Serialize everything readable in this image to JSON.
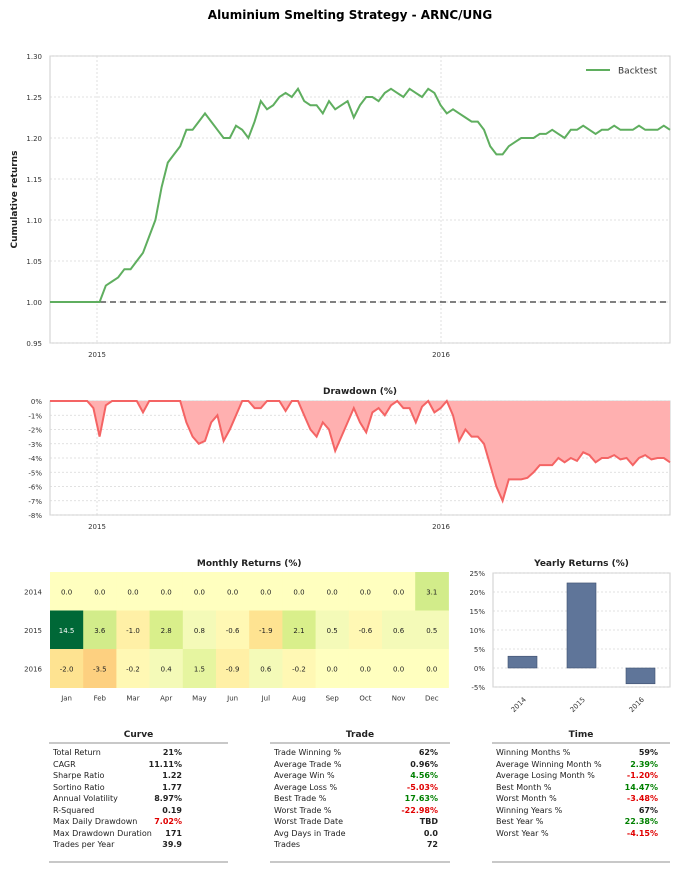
{
  "figure_title": "Aluminium Smelting Strategy - ARNC/UNG",
  "colors": {
    "green": "#5fae5f",
    "red": "#f46464",
    "redfill": "#ffb0b0",
    "bar": "#5f7599",
    "pos": "#008000",
    "neg": "#e00000"
  },
  "chart_data": [
    {
      "type": "line",
      "name": "cumulative_returns",
      "ylabel": "Cumulative returns",
      "ylim": [
        0.95,
        1.3
      ],
      "yticks": [
        "0.95",
        "1.00",
        "1.05",
        "1.10",
        "1.15",
        "1.20",
        "1.25",
        "1.30"
      ],
      "xticks": [
        "2015",
        "2016"
      ],
      "legend": "Backtest",
      "legend_position": "top-right",
      "baseline": 1.0,
      "series": [
        {
          "name": "Backtest",
          "x": [
            0,
            8,
            9,
            10,
            11,
            12,
            13,
            14,
            15,
            16,
            17,
            18,
            19,
            20,
            21,
            21.5,
            22,
            23,
            24,
            25,
            26,
            27,
            28,
            29,
            30,
            31,
            32,
            33,
            34,
            35,
            36,
            37,
            38,
            39,
            40,
            41,
            42,
            43,
            44,
            45,
            46,
            47,
            48,
            49,
            50,
            51,
            52,
            53,
            54,
            55,
            56,
            57,
            58,
            59,
            60,
            61,
            62,
            63,
            64,
            65,
            66,
            67,
            68,
            69,
            70,
            71,
            72,
            73,
            74,
            75,
            76,
            77,
            78,
            79,
            80,
            81,
            82,
            83,
            84,
            85,
            86,
            87,
            88,
            89,
            90,
            91,
            92,
            93,
            94,
            95,
            96,
            97,
            98,
            99,
            100
          ],
          "y": [
            1.0,
            1.0,
            1.02,
            1.025,
            1.03,
            1.04,
            1.04,
            1.05,
            1.06,
            1.08,
            1.1,
            1.14,
            1.17,
            1.18,
            1.19,
            1.2,
            1.21,
            1.21,
            1.22,
            1.23,
            1.22,
            1.21,
            1.2,
            1.2,
            1.215,
            1.21,
            1.2,
            1.22,
            1.245,
            1.235,
            1.24,
            1.25,
            1.255,
            1.25,
            1.26,
            1.245,
            1.24,
            1.24,
            1.23,
            1.245,
            1.235,
            1.24,
            1.245,
            1.225,
            1.24,
            1.25,
            1.25,
            1.245,
            1.255,
            1.26,
            1.255,
            1.25,
            1.26,
            1.255,
            1.25,
            1.26,
            1.255,
            1.24,
            1.23,
            1.235,
            1.23,
            1.225,
            1.22,
            1.22,
            1.21,
            1.19,
            1.18,
            1.18,
            1.19,
            1.195,
            1.2,
            1.2,
            1.2,
            1.205,
            1.205,
            1.21,
            1.205,
            1.2,
            1.21,
            1.21,
            1.215,
            1.21,
            1.205,
            1.21,
            1.21,
            1.215,
            1.21,
            1.21,
            1.21,
            1.215,
            1.21,
            1.21,
            1.21,
            1.215,
            1.21
          ]
        }
      ]
    },
    {
      "type": "area",
      "name": "drawdown",
      "title": "Drawdown (%)",
      "ylim": [
        -8,
        0
      ],
      "yticks": [
        "0%",
        "-1%",
        "-2%",
        "-3%",
        "-4%",
        "-5%",
        "-6%",
        "-7%",
        "-8%"
      ],
      "xticks": [
        "2015",
        "2016"
      ],
      "series": [
        {
          "name": "Drawdown",
          "x": [
            0,
            6,
            7,
            8,
            9,
            10,
            12,
            14,
            15,
            16,
            17,
            18,
            19,
            20,
            21,
            22,
            23,
            24,
            25,
            26,
            27,
            28,
            29,
            30,
            31,
            32,
            33,
            34,
            35,
            36,
            37,
            38,
            39,
            40,
            41,
            42,
            43,
            44,
            45,
            46,
            47,
            48,
            49,
            50,
            51,
            52,
            53,
            54,
            55,
            56,
            57,
            58,
            59,
            60,
            61,
            62,
            63,
            64,
            65,
            66,
            67,
            68,
            69,
            70,
            71,
            72,
            73,
            74,
            75,
            76,
            77,
            78,
            79,
            80,
            81,
            82,
            83,
            84,
            85,
            86,
            87,
            88,
            89,
            90,
            91,
            92,
            93,
            94,
            95,
            96,
            97,
            98,
            99,
            100
          ],
          "y": [
            0,
            0,
            -0.5,
            -2.5,
            -0.3,
            0,
            0,
            0,
            -0.8,
            0,
            0,
            0,
            0,
            0,
            0,
            -1.5,
            -2.5,
            -3,
            -2.8,
            -1.5,
            -1,
            -2.8,
            -2,
            -1,
            0,
            0,
            -0.5,
            -0.5,
            0,
            0,
            0,
            -0.7,
            0,
            0,
            -1,
            -2,
            -2.5,
            -1.5,
            -2,
            -3.5,
            -2.5,
            -1.5,
            -0.5,
            -1.5,
            -2.2,
            -0.8,
            -0.5,
            -1,
            -0.3,
            0,
            -0.5,
            -0.5,
            -1.5,
            -0.4,
            0,
            -0.8,
            -0.5,
            0,
            -1,
            -2.8,
            -2,
            -2.5,
            -2.5,
            -3,
            -4.5,
            -6,
            -7,
            -5.5,
            -5.5,
            -5.5,
            -5.4,
            -5,
            -4.5,
            -4.5,
            -4.5,
            -4,
            -4.3,
            -4,
            -4.2,
            -3.6,
            -3.8,
            -4.3,
            -4,
            -4,
            -3.8,
            -4.1,
            -4,
            -4.5,
            -4,
            -3.8,
            -4.1,
            -4,
            -4,
            -4.3
          ]
        }
      ]
    },
    {
      "type": "heatmap",
      "name": "monthly_returns",
      "title": "Monthly Returns (%)",
      "rows": [
        "2014",
        "2015",
        "2016"
      ],
      "columns": [
        "Jan",
        "Feb",
        "Mar",
        "Apr",
        "May",
        "Jun",
        "Jul",
        "Aug",
        "Sep",
        "Oct",
        "Nov",
        "Dec"
      ],
      "values": [
        [
          "0.0",
          "0.0",
          "0.0",
          "0.0",
          "0.0",
          "0.0",
          "0.0",
          "0.0",
          "0.0",
          "0.0",
          "0.0",
          "3.1"
        ],
        [
          "14.5",
          "3.6",
          "-1.0",
          "2.8",
          "0.8",
          "-0.6",
          "-1.9",
          "2.1",
          "0.5",
          "-0.6",
          "0.6",
          "0.5"
        ],
        [
          "-2.0",
          "-3.5",
          "-0.2",
          "0.4",
          "1.5",
          "-0.9",
          "0.6",
          "-0.2",
          "0.0",
          "0.0",
          "0.0",
          "0.0"
        ]
      ]
    },
    {
      "type": "bar",
      "name": "yearly_returns",
      "title": "Yearly Returns (%)",
      "categories": [
        "2014",
        "2015",
        "2016"
      ],
      "values": [
        3.1,
        22.38,
        -4.15
      ],
      "ylim": [
        -5,
        25
      ],
      "yticks": [
        "25%",
        "20%",
        "15%",
        "10%",
        "5%",
        "0%",
        "-5%"
      ]
    }
  ],
  "tables": [
    {
      "title": "Curve",
      "rows": [
        {
          "label": "Total Return",
          "value": "21%",
          "tone": ""
        },
        {
          "label": "CAGR",
          "value": "11.11%",
          "tone": ""
        },
        {
          "label": "Sharpe Ratio",
          "value": "1.22",
          "tone": ""
        },
        {
          "label": "Sortino Ratio",
          "value": "1.77",
          "tone": ""
        },
        {
          "label": "Annual Volatility",
          "value": "8.97%",
          "tone": ""
        },
        {
          "label": "R-Squared",
          "value": "0.19",
          "tone": ""
        },
        {
          "label": "Max Daily Drawdown",
          "value": "7.02%",
          "tone": "neg"
        },
        {
          "label": "Max Drawdown Duration",
          "value": "171",
          "tone": ""
        },
        {
          "label": "Trades per Year",
          "value": "39.9",
          "tone": ""
        }
      ]
    },
    {
      "title": "Trade",
      "rows": [
        {
          "label": "Trade Winning %",
          "value": "62%",
          "tone": ""
        },
        {
          "label": "Average Trade %",
          "value": "0.96%",
          "tone": ""
        },
        {
          "label": "Average Win %",
          "value": "4.56%",
          "tone": "pos"
        },
        {
          "label": "Average Loss %",
          "value": "-5.03%",
          "tone": "neg"
        },
        {
          "label": "Best Trade %",
          "value": "17.63%",
          "tone": "pos"
        },
        {
          "label": "Worst Trade %",
          "value": "-22.98%",
          "tone": "neg"
        },
        {
          "label": "Worst Trade Date",
          "value": "TBD",
          "tone": ""
        },
        {
          "label": "Avg Days in Trade",
          "value": "0.0",
          "tone": ""
        },
        {
          "label": "Trades",
          "value": "72",
          "tone": ""
        }
      ]
    },
    {
      "title": "Time",
      "rows": [
        {
          "label": "Winning Months %",
          "value": "59%",
          "tone": ""
        },
        {
          "label": "Average Winning Month %",
          "value": "2.39%",
          "tone": "pos"
        },
        {
          "label": "Average Losing Month %",
          "value": "-1.20%",
          "tone": "neg"
        },
        {
          "label": "Best Month %",
          "value": "14.47%",
          "tone": "pos"
        },
        {
          "label": "Worst Month %",
          "value": "-3.48%",
          "tone": "neg"
        },
        {
          "label": "Winning Years %",
          "value": "67%",
          "tone": ""
        },
        {
          "label": "Best Year %",
          "value": "22.38%",
          "tone": "pos"
        },
        {
          "label": "Worst Year %",
          "value": "-4.15%",
          "tone": "neg"
        }
      ]
    }
  ]
}
